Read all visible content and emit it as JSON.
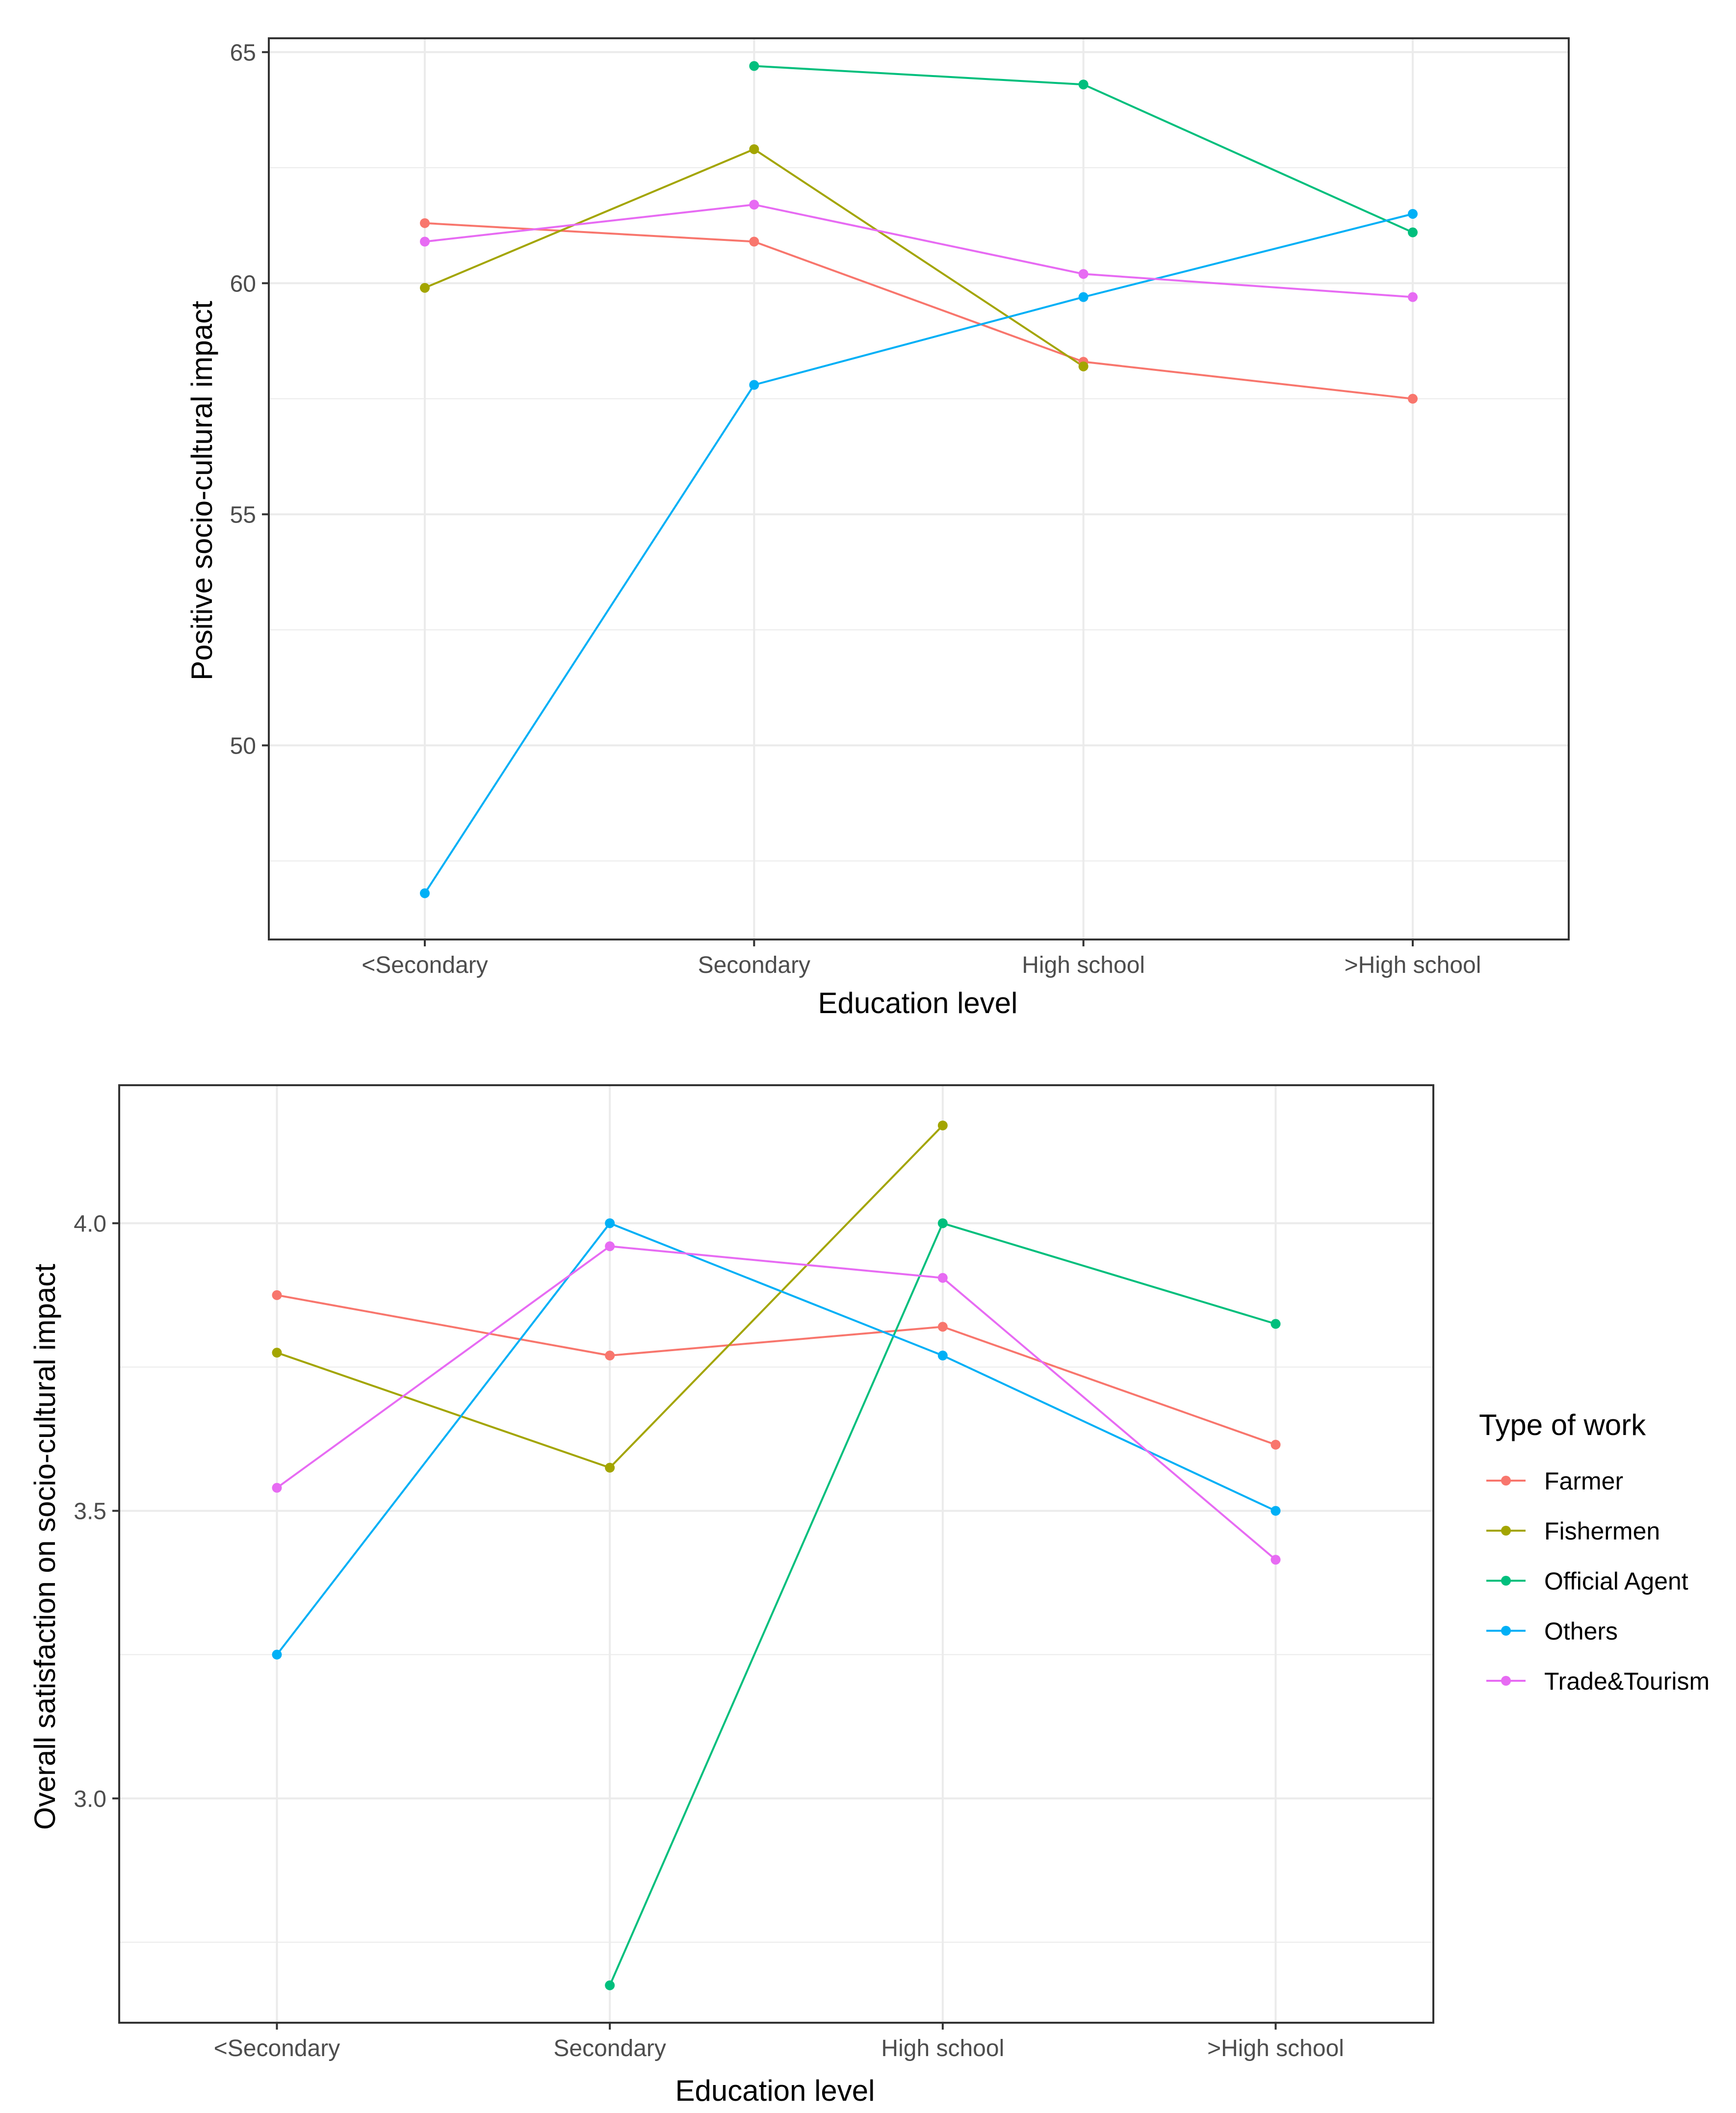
{
  "chart_data": [
    {
      "type": "line",
      "title": "",
      "xlabel": "Education level",
      "ylabel": "Positive socio-cultural impact",
      "categories": [
        "<Secondary",
        "Secondary",
        "High school",
        ">High school"
      ],
      "ylim": [
        45.8,
        65.3
      ],
      "yticks": [
        50,
        55,
        60,
        65
      ],
      "yticks_minor": [
        47.5,
        52.5,
        57.5,
        62.5
      ],
      "grid": true,
      "series": [
        {
          "name": "Farmer",
          "values": [
            61.3,
            60.9,
            58.3,
            57.5
          ]
        },
        {
          "name": "Fishermen",
          "values": [
            59.9,
            62.9,
            58.2,
            null
          ]
        },
        {
          "name": "Official Agent",
          "values": [
            null,
            64.7,
            64.3,
            61.1
          ]
        },
        {
          "name": "Others",
          "values": [
            46.8,
            57.8,
            59.7,
            61.5
          ]
        },
        {
          "name": "Trade&Tourism",
          "values": [
            60.9,
            61.7,
            60.2,
            59.7
          ]
        }
      ]
    },
    {
      "type": "line",
      "title": "",
      "xlabel": "Education level",
      "ylabel": "Overall satisfaction on socio-cultural impact",
      "categories": [
        "<Secondary",
        "Secondary",
        "High school",
        ">High school"
      ],
      "ylim": [
        2.61,
        4.24
      ],
      "yticks": [
        3.0,
        3.5,
        4.0
      ],
      "ytick_labels": [
        "3.0",
        "3.5",
        "4.0"
      ],
      "yticks_minor": [
        2.75,
        3.25,
        3.75
      ],
      "grid": true,
      "series": [
        {
          "name": "Farmer",
          "values": [
            3.875,
            3.77,
            3.82,
            3.615
          ]
        },
        {
          "name": "Fishermen",
          "values": [
            3.775,
            3.575,
            4.17,
            null
          ]
        },
        {
          "name": "Official Agent",
          "values": [
            null,
            2.675,
            4.0,
            3.825
          ]
        },
        {
          "name": "Others",
          "values": [
            3.25,
            4.0,
            3.77,
            3.5
          ]
        },
        {
          "name": "Trade&Tourism",
          "values": [
            3.54,
            3.96,
            3.905,
            3.415
          ]
        }
      ]
    }
  ],
  "legend": {
    "title": "Type of work",
    "position": "right",
    "items": [
      {
        "label": "Farmer",
        "color": "#F8766D"
      },
      {
        "label": "Fishermen",
        "color": "#A3A500"
      },
      {
        "label": "Official Agent",
        "color": "#00BF7D"
      },
      {
        "label": "Others",
        "color": "#00B0F6"
      },
      {
        "label": "Trade&Tourism",
        "color": "#E76BF3"
      }
    ]
  }
}
